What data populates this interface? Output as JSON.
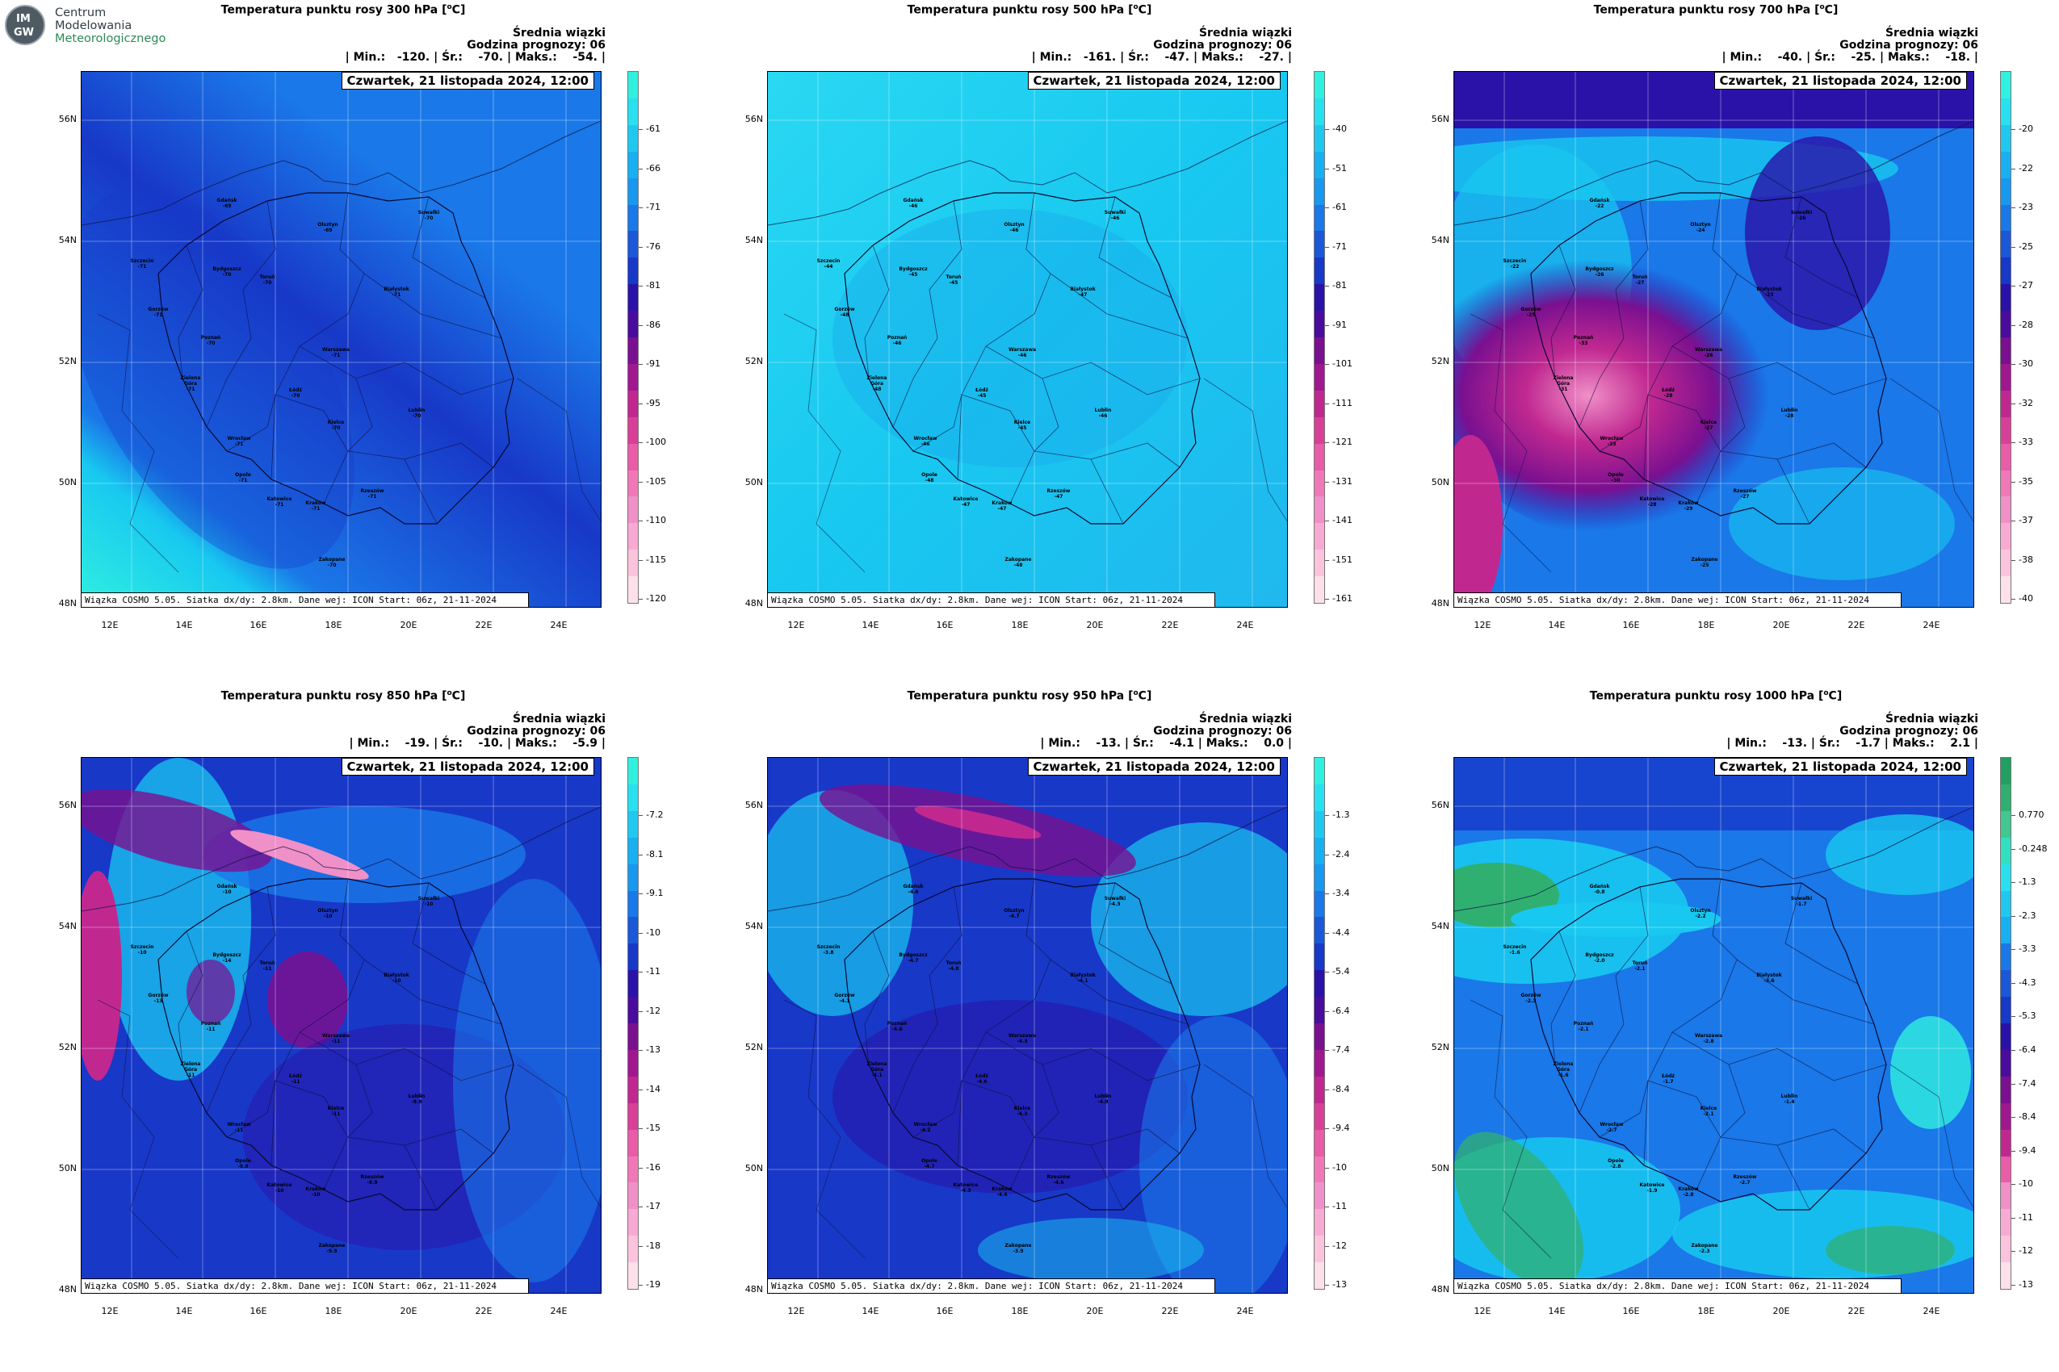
{
  "logo": {
    "line1": "Centrum",
    "line2": "Modelowania",
    "line3": "Meteorologicznego",
    "initials_top": "IM",
    "initials_bottom": "GW"
  },
  "common": {
    "info_title": "Średnia wiązki",
    "info_hour": "Godzina prognozy: 06",
    "date": "Czwartek, 21 listopada 2024, 12:00",
    "footer": "Wiązka COSMO 5.05. Siatka dx/dy: 2.8km. Dane wej: ICON Start: 06z, 21-11-2024",
    "lat_labels": [
      "56N",
      "54N",
      "52N",
      "50N",
      "48N"
    ],
    "lon_labels": [
      "12E",
      "14E",
      "16E",
      "18E",
      "20E",
      "22E",
      "24E"
    ],
    "cities": [
      "Gdańsk",
      "Olsztyn",
      "Suwałki",
      "Szczecin",
      "Bydgoszcz",
      "Toruń",
      "Białystok",
      "Gorzów",
      "Poznań",
      "Warszawa",
      "Zielona Góra",
      "Łódź",
      "Wrocław",
      "Lublin",
      "Kielce",
      "Opole",
      "Katowice",
      "Kraków",
      "Rzeszów",
      "Zakopane"
    ]
  },
  "panels": [
    {
      "title": "Temperatura punktu rosy 300 hPa [",
      "unit_sup": "o",
      "unit_tail": "C]",
      "stats": "| Min.:   -120. | Śr.:    -70. | Maks.:    -54. |",
      "colorbar_labels": [
        "-61",
        "-66",
        "-71",
        "-76",
        "-81",
        "-86",
        "-91",
        "-95",
        "-100",
        "-105",
        "-110",
        "-115",
        "-120"
      ],
      "city_values": [
        "-69",
        "-69",
        "-70",
        "-71",
        "-70",
        "-70",
        "-71",
        "-71",
        "-70",
        "-71",
        "-71",
        "-70",
        "-71",
        "-70",
        "-70",
        "-71",
        "-71",
        "-71",
        "-71",
        "-70"
      ]
    },
    {
      "title": "Temperatura punktu rosy 500 hPa [",
      "unit_sup": "o",
      "unit_tail": "C]",
      "stats": "| Min.:   -161. | Śr.:    -47. | Maks.:    -27. |",
      "colorbar_labels": [
        "-40",
        "-51",
        "-61",
        "-71",
        "-81",
        "-91",
        "-101",
        "-111",
        "-121",
        "-131",
        "-141",
        "-151",
        "-161"
      ],
      "city_values": [
        "-46",
        "-46",
        "-46",
        "-44",
        "-45",
        "-45",
        "-47",
        "-48",
        "-46",
        "-46",
        "-48",
        "-45",
        "-46",
        "-46",
        "-45",
        "-48",
        "-47",
        "-47",
        "-47",
        "-48"
      ]
    },
    {
      "title": "Temperatura punktu rosy 700 hPa [",
      "unit_sup": "o",
      "unit_tail": "C]",
      "stats": "| Min.:    -40. | Śr.:    -25. | Maks.:    -18. |",
      "colorbar_labels": [
        "-20",
        "-22",
        "-23",
        "-25",
        "-27",
        "-28",
        "-30",
        "-32",
        "-33",
        "-35",
        "-37",
        "-38",
        "-40"
      ],
      "city_values": [
        "-22",
        "-24",
        "-26",
        "-22",
        "-26",
        "-27",
        "-23",
        "-25",
        "-33",
        "-26",
        "-31",
        "-28",
        "-33",
        "-28",
        "-27",
        "-30",
        "-28",
        "-29",
        "-27",
        "-25"
      ]
    },
    {
      "title": "Temperatura punktu rosy 850 hPa [",
      "unit_sup": "o",
      "unit_tail": "C]",
      "stats": "| Min.:    -19. | Śr.:    -10. | Maks.:    -5.9 |",
      "colorbar_labels": [
        "-7.2",
        "-8.1",
        "-9.1",
        "-10",
        "-11",
        "-12",
        "-13",
        "-14",
        "-15",
        "-16",
        "-17",
        "-18",
        "-19"
      ],
      "city_values": [
        "-10",
        "-10",
        "-10",
        "-10",
        "-14",
        "-11",
        "-10",
        "-13",
        "-11",
        "-11",
        "-11",
        "-11",
        "-11",
        "-9.9",
        "-11",
        "-9.8",
        "-10",
        "-10",
        "-9.9",
        "-9.9"
      ]
    },
    {
      "title": "Temperatura punktu rosy 950 hPa [",
      "unit_sup": "o",
      "unit_tail": "C]",
      "stats": "| Min.:    -13. | Śr.:    -4.1 | Maks.:    0.0 |",
      "colorbar_labels": [
        "-1.3",
        "-2.4",
        "-3.4",
        "-4.4",
        "-5.4",
        "-6.4",
        "-7.4",
        "-8.4",
        "-9.4",
        "-10",
        "-11",
        "-12",
        "-13"
      ],
      "city_values": [
        "-4.6",
        "-4.7",
        "-4.3",
        "-3.8",
        "-4.7",
        "-4.8",
        "-4.1",
        "-4.1",
        "-4.6",
        "-4.3",
        "-4.1",
        "-4.6",
        "-4.2",
        "-4.8",
        "-4.3",
        "-4.7",
        "-4.3",
        "-4.4",
        "-4.6",
        "-3.9"
      ]
    },
    {
      "title": "Temperatura punktu rosy 1000 hPa [",
      "unit_sup": "o",
      "unit_tail": "C]",
      "stats": "| Min.:    -13. | Śr.:    -1.7 | Maks.:    2.1 |",
      "colorbar_labels": [
        "0.770",
        "-0.248",
        "-1.3",
        "-2.3",
        "-3.3",
        "-4.3",
        "-5.3",
        "-6.4",
        "-7.4",
        "-8.4",
        "-9.4",
        "-10",
        "-11",
        "-12",
        "-13"
      ],
      "city_values": [
        "-0.8",
        "-2.2",
        "-1.7",
        "-1.6",
        "-2.0",
        "-2.1",
        "-3.6",
        "-2.3",
        "-2.1",
        "-2.8",
        "-1.6",
        "-1.7",
        "-2.7",
        "-1.4",
        "-2.1",
        "-2.8",
        "-1.9",
        "-2.8",
        "-2.7",
        "-2.3"
      ]
    }
  ],
  "colors": {
    "cyan": "#30f0e0",
    "light_blue": "#18c8f0",
    "mid_blue": "#1a78e8",
    "deep_blue": "#1838c8",
    "indigo": "#2a12a8",
    "purple": "#7a1090",
    "magenta": "#c02890",
    "pink": "#f090c8",
    "pale_pink": "#fde8f0",
    "green": "#30b070"
  }
}
